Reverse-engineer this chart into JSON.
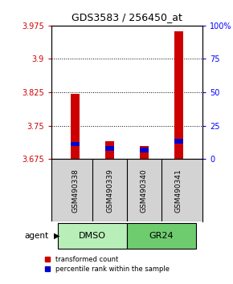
{
  "title": "GDS3583 / 256450_at",
  "samples": [
    "GSM490338",
    "GSM490339",
    "GSM490340",
    "GSM490341"
  ],
  "groups": [
    "DMSO",
    "DMSO",
    "GR24",
    "GR24"
  ],
  "group_labels": [
    "DMSO",
    "GR24"
  ],
  "group_light_colors": [
    "#B8EEB8",
    "#6ECC6E"
  ],
  "ylim_left": [
    3.675,
    3.975
  ],
  "yticks_left": [
    3.675,
    3.75,
    3.825,
    3.9,
    3.975
  ],
  "ytick_labels_left": [
    "3.675",
    "3.75",
    "3.825",
    "3.9",
    "3.975"
  ],
  "ylim_right": [
    0,
    100
  ],
  "yticks_right": [
    0,
    25,
    50,
    75,
    100
  ],
  "ytick_labels_right": [
    "0",
    "25",
    "50",
    "75",
    "100%"
  ],
  "bar_bases": [
    3.675,
    3.675,
    3.675,
    3.675
  ],
  "red_bar_tops": [
    3.822,
    3.715,
    3.705,
    3.963
  ],
  "blue_bar_bottoms": [
    3.704,
    3.694,
    3.69,
    3.71
  ],
  "blue_bar_tops": [
    3.714,
    3.704,
    3.7,
    3.72
  ],
  "red_color": "#CC0000",
  "blue_color": "#0000CC",
  "sample_bg_color": "#D3D3D3",
  "agent_label": "agent",
  "legend_red": "transformed count",
  "legend_blue": "percentile rank within the sample",
  "bar_width": 0.25,
  "background_color": "#FFFFFF"
}
